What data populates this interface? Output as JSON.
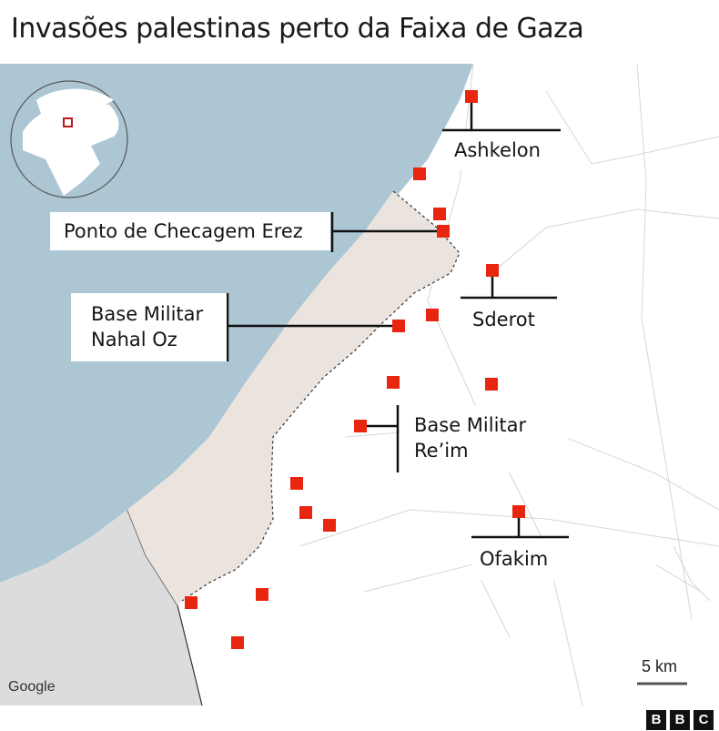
{
  "title": "Invasões palestinas perto da Faixa de Gaza",
  "labels": {
    "ashkelon": "Ashkelon",
    "erez": "Ponto de Checagem Erez",
    "nahal_oz_1": "Base Militar",
    "nahal_oz_2": "Nahal Oz",
    "sderot": "Sderot",
    "reim_1": "Base Militar",
    "reim_2": "Re’im",
    "ofakim": "Ofakim"
  },
  "scale": "5 km",
  "attribution": "Google",
  "logo": "BBC",
  "colors": {
    "sea": "#adc6d4",
    "gaza": "#ebe4de",
    "egypt": "#dcdcdc",
    "marker": "#e8250f",
    "land": "#ffffff"
  },
  "locator": {
    "icon": "globe-icon"
  }
}
